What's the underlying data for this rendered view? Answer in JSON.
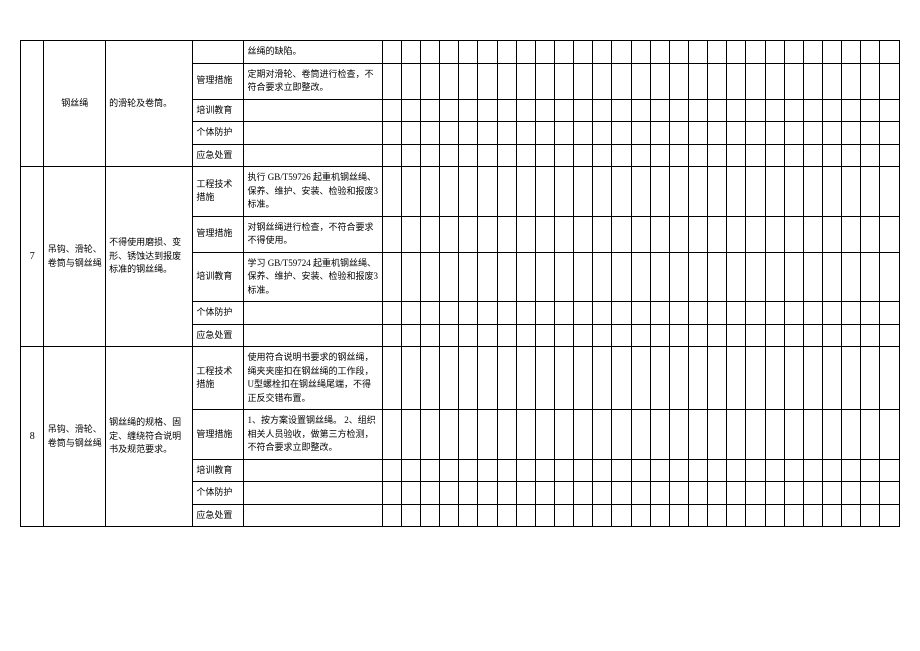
{
  "rows": [
    {
      "id": "",
      "item": "钢丝绳",
      "desc": "的滑轮及卷筒。",
      "subs": [
        {
          "cat": "",
          "detail": "丝绳的缺陷。"
        },
        {
          "cat": "管理措施",
          "detail": "定期对滑轮、卷筒进行检查，不符合要求立即整改。"
        },
        {
          "cat": "培训教育",
          "detail": ""
        },
        {
          "cat": "个体防护",
          "detail": ""
        },
        {
          "cat": "应急处置",
          "detail": ""
        }
      ]
    },
    {
      "id": "7",
      "item": "吊钩、滑轮、卷筒与钢丝绳",
      "desc": "不得使用磨损、变形、锈蚀达到报废标准的钢丝绳。",
      "subs": [
        {
          "cat": "工程技术措施",
          "detail": "执行 GB/T59726 起重机钢丝绳、保养、维护、安装、检验和报废3 标准。"
        },
        {
          "cat": "管理措施",
          "detail": "对钢丝绳进行检查，不符合要求不得使用。"
        },
        {
          "cat": "培训教育",
          "detail": "学习 GB/T59724 起重机钢丝绳、保养、维护、安装、检验和报废3 标准。"
        },
        {
          "cat": "个体防护",
          "detail": ""
        },
        {
          "cat": "应急处置",
          "detail": ""
        }
      ]
    },
    {
      "id": "8",
      "item": "吊钩、滑轮、卷筒与钢丝绳",
      "desc": "钢丝绳的规格、固定、缠绕符合说明书及规范要求。",
      "subs": [
        {
          "cat": "工程技术措施",
          "detail": "使用符合说明书要求的钢丝绳，绳夹夹座扣在钢丝绳的工作段，U型螺栓扣在钢丝绳尾端，不得正反交错布置。"
        },
        {
          "cat": "管理措施",
          "detail": "1、按方案设置钢丝绳。\n2、组织相关人员验收，做第三方检测，不符合要求立即整改。"
        },
        {
          "cat": "培训教育",
          "detail": ""
        },
        {
          "cat": "个体防护",
          "detail": ""
        },
        {
          "cat": "应急处置",
          "detail": ""
        }
      ]
    }
  ],
  "blankCols": 27
}
